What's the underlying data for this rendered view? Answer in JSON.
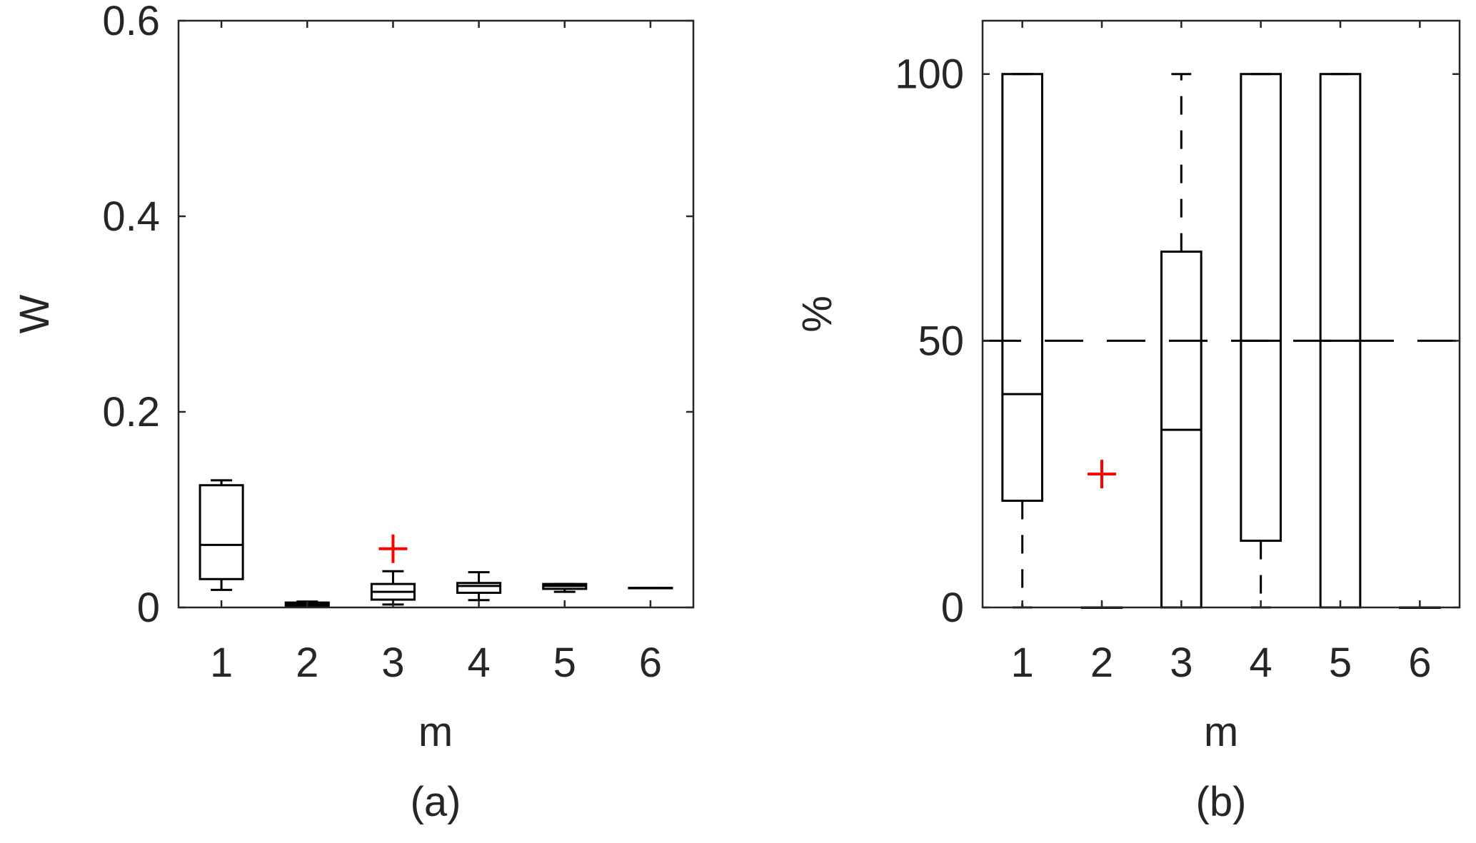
{
  "chart_data": [
    {
      "type": "box",
      "caption": "(a)",
      "xlabel": "m",
      "ylabel": "W",
      "categories": [
        "1",
        "2",
        "3",
        "4",
        "5",
        "6"
      ],
      "ylim": [
        0,
        0.6
      ],
      "yticks": [
        "0",
        "0.2",
        "0.4",
        "0.6"
      ],
      "ytick_values": [
        0,
        0.2,
        0.4,
        0.6
      ],
      "boxes": [
        {
          "whisker_low": 0.018,
          "q1": 0.029,
          "median": 0.064,
          "q3": 0.125,
          "whisker_high": 0.13,
          "outliers": []
        },
        {
          "whisker_low": 0.001,
          "q1": 0.001,
          "median": 0.003,
          "q3": 0.005,
          "whisker_high": 0.006,
          "outliers": []
        },
        {
          "whisker_low": 0.003,
          "q1": 0.008,
          "median": 0.016,
          "q3": 0.024,
          "whisker_high": 0.037,
          "outliers": [
            0.06
          ]
        },
        {
          "whisker_low": 0.0075,
          "q1": 0.015,
          "median": 0.022,
          "q3": 0.025,
          "whisker_high": 0.036,
          "outliers": []
        },
        {
          "whisker_low": 0.016,
          "q1": 0.019,
          "median": 0.022,
          "q3": 0.024,
          "whisker_high": 0.024,
          "outliers": []
        },
        {
          "whisker_low": 0.02,
          "q1": 0.02,
          "median": 0.02,
          "q3": 0.02,
          "whisker_high": 0.02,
          "outliers": []
        }
      ],
      "reference_line": null,
      "colors": {
        "box": "#000000",
        "outlier": "#ff0000",
        "axis": "#262626"
      }
    },
    {
      "type": "box",
      "caption": "(b)",
      "xlabel": "m",
      "ylabel": "%",
      "categories": [
        "1",
        "2",
        "3",
        "4",
        "5",
        "6"
      ],
      "ylim": [
        0,
        110
      ],
      "yticks": [
        "0",
        "50",
        "100"
      ],
      "ytick_values": [
        0,
        50,
        100
      ],
      "boxes": [
        {
          "whisker_low": 0,
          "q1": 20,
          "median": 40,
          "q3": 100,
          "whisker_high": 100,
          "outliers": []
        },
        {
          "whisker_low": 0,
          "q1": 0,
          "median": 0,
          "q3": 0,
          "whisker_high": 0,
          "outliers": [
            25
          ]
        },
        {
          "whisker_low": 0,
          "q1": 0,
          "median": 33.3,
          "q3": 66.7,
          "whisker_high": 100,
          "outliers": []
        },
        {
          "whisker_low": 0,
          "q1": 12.5,
          "median": 50,
          "q3": 100,
          "whisker_high": 100,
          "outliers": []
        },
        {
          "whisker_low": 0,
          "q1": 0,
          "median": 50,
          "q3": 100,
          "whisker_high": 100,
          "outliers": []
        },
        {
          "whisker_low": 0,
          "q1": 0,
          "median": 0,
          "q3": 0,
          "whisker_high": 0,
          "outliers": []
        }
      ],
      "reference_line": 50,
      "colors": {
        "box": "#000000",
        "outlier": "#ff0000",
        "axis": "#262626"
      }
    }
  ]
}
